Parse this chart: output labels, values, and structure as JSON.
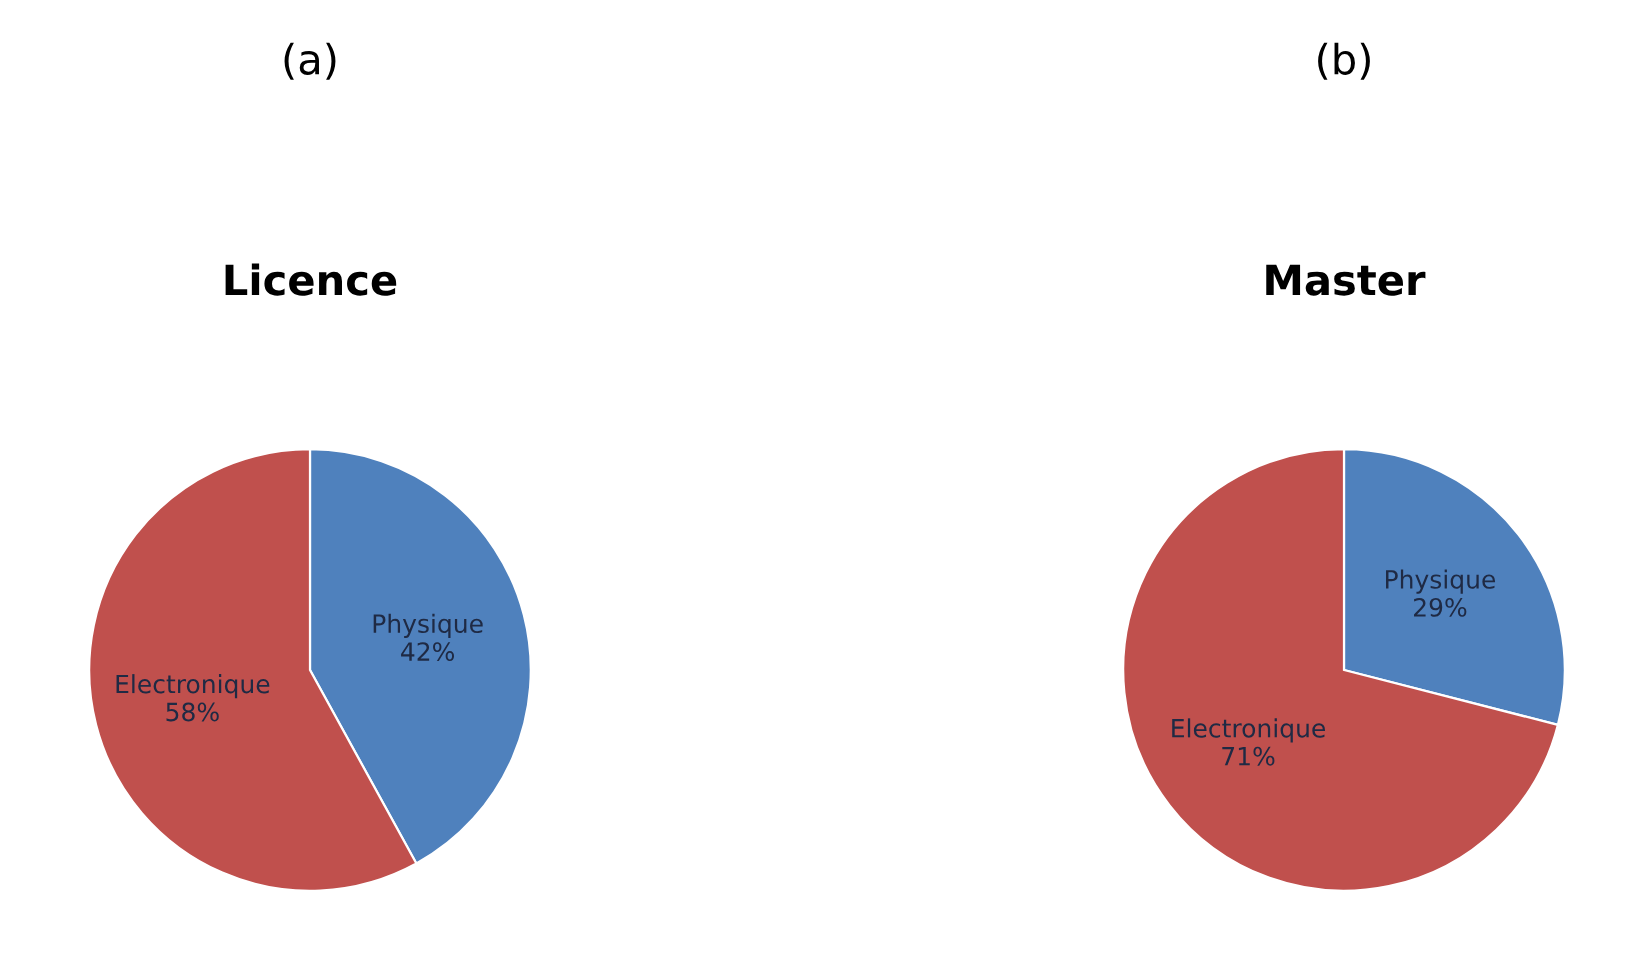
{
  "chart_data": [
    {
      "type": "pie",
      "title": "Licence",
      "annotations": [
        "(a)"
      ],
      "categories": [
        "Physique",
        "Electronique"
      ],
      "values": [
        42,
        58
      ],
      "value_labels": [
        "42%",
        "58%"
      ],
      "colors": [
        "#4f81bd",
        "#c0504d"
      ]
    },
    {
      "type": "pie",
      "title": "Master",
      "annotations": [
        "(b)"
      ],
      "categories": [
        "Physique",
        "Electronique"
      ],
      "values": [
        29,
        71
      ],
      "value_labels": [
        "29%",
        "71%"
      ],
      "colors": [
        "#4f81bd",
        "#c0504d"
      ]
    }
  ]
}
